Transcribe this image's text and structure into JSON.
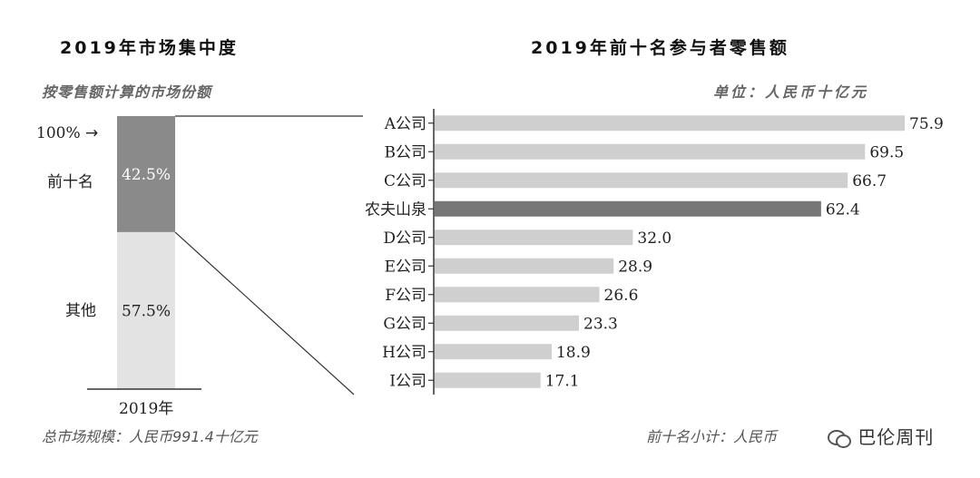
{
  "chart_data": [
    {
      "type": "bar",
      "title": "2019年市场集中度",
      "subtitle": "按零售额计算的市场份额",
      "categories": [
        "2019年"
      ],
      "series": [
        {
          "name": "前十名",
          "values": [
            42.5
          ]
        },
        {
          "name": "其他",
          "values": [
            57.5
          ]
        }
      ],
      "value_labels": [
        "42.5%",
        "57.5%"
      ],
      "total_label": "100%",
      "unit": "%",
      "footnote": "总市场规模：人民币991.4十亿元",
      "colors": {
        "top10": "#8a8a8a",
        "others": "#e3e3e3"
      }
    },
    {
      "type": "bar",
      "orientation": "horizontal",
      "title": "2019年前十名参与者零售额",
      "unit_label": "单位：人民币十亿元",
      "categories": [
        "A公司",
        "B公司",
        "C公司",
        "农夫山泉",
        "D公司",
        "E公司",
        "F公司",
        "G公司",
        "H公司",
        "I公司"
      ],
      "values": [
        75.9,
        69.5,
        66.7,
        62.4,
        32.0,
        28.9,
        26.6,
        23.3,
        18.9,
        17.1
      ],
      "value_labels": [
        "75.9",
        "69.5",
        "66.7",
        "62.4",
        "32.0",
        "28.9",
        "26.6",
        "23.3",
        "18.9",
        "17.1"
      ],
      "highlight": "农夫山泉",
      "footnote": "前十名小计：人民币",
      "colors": {
        "bar": "#cfcfcf",
        "highlight": "#777777"
      }
    }
  ],
  "watermark": {
    "text": "巴伦周刊",
    "icon": "wechat-icon"
  }
}
